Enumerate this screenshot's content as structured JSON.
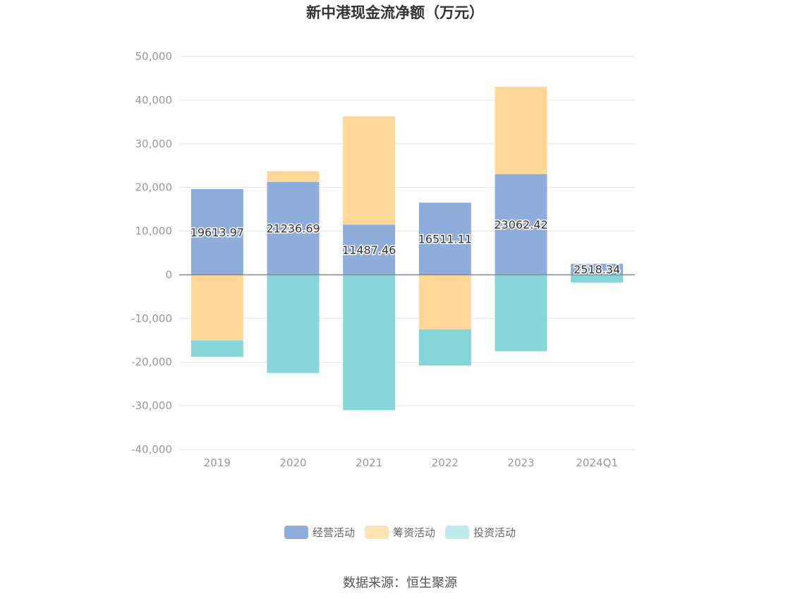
{
  "chart_data": {
    "type": "bar",
    "stacked": true,
    "title": "新中港现金流净额（万元）",
    "categories": [
      "2019",
      "2020",
      "2021",
      "2022",
      "2023",
      "2024Q1"
    ],
    "ylim": [
      -40000,
      50000
    ],
    "yticks": [
      50000,
      40000,
      30000,
      20000,
      10000,
      0,
      -10000,
      -20000,
      -30000,
      -40000
    ],
    "ytick_labels": [
      "50,000",
      "40,000",
      "30,000",
      "20,000",
      "10,000",
      "0",
      "-10,000",
      "-20,000",
      "-30,000",
      "-40,000"
    ],
    "grid": true,
    "legend_position": "bottom",
    "series": [
      {
        "name": "经营活动",
        "color": "#8eaddb",
        "values": [
          19613.97,
          21236.69,
          11487.46,
          16511.11,
          23062.42,
          2518.34
        ],
        "labels_shown": true
      },
      {
        "name": "筹资活动",
        "color": "#ffd899",
        "values": [
          -15000,
          2500,
          24800,
          -12500,
          20000,
          0
        ],
        "labels_shown": false
      },
      {
        "name": "投资活动",
        "color": "#86d5d9",
        "values": [
          -3800,
          -22500,
          -31000,
          -8300,
          -17500,
          -1800
        ],
        "labels_shown": false
      }
    ]
  },
  "legend": [
    {
      "label": "经营活动",
      "color": "#8eaddb"
    },
    {
      "label": "筹资活动",
      "color": "#ffe4b8"
    },
    {
      "label": "投资活动",
      "color": "#bfeaec"
    }
  ],
  "source": "数据来源：恒生聚源"
}
